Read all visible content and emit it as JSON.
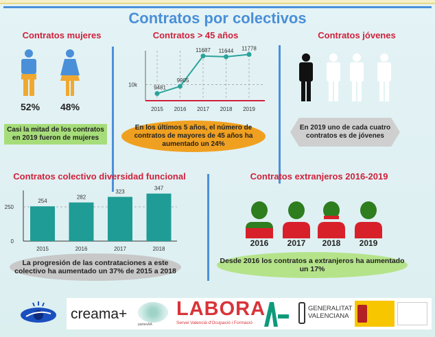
{
  "title": "Contratos por colectivos",
  "women": {
    "title": "Contratos mujeres",
    "men_pct": "52%",
    "women_pct": "48%",
    "caption": "Casi la mitad de los contratos en 2019 fueron de mujeres",
    "colors": {
      "top": "#4a90d9",
      "bottom": "#f0a830",
      "caption_bg": "#a6dd7a"
    }
  },
  "over45": {
    "title": "Contratos > 45 años",
    "caption": "En los últimos 5 años, el número de contratos de mayores de 45 años ha aumentado un 24%",
    "caption_bg": "#f0a020"
  },
  "young": {
    "title": "Contratos jóvenes",
    "caption": "En 2019 uno de cada cuatro contratos es de jóvenes",
    "highlighted": 1,
    "total": 4
  },
  "diversity": {
    "title": "Contratos colectivo diversidad funcional",
    "caption": "La progresión de las contrataciones a este colectivo ha aumentado un 37% de 2015 a 2018"
  },
  "foreign": {
    "title": "Contratos extranjeros 2016-2019",
    "years": [
      "2016",
      "2017",
      "2018",
      "2019"
    ],
    "caption": "Desde 2016 los contratos a extranjeros ha aumentado un 17%",
    "colors": {
      "head": "#2e7d1e",
      "body": "#d8202a"
    }
  },
  "chart_data": [
    {
      "type": "line",
      "title": "Contratos > 45 años",
      "categories": [
        "2015",
        "2016",
        "2017",
        "2018",
        "2019"
      ],
      "values": [
        9481,
        9905,
        11687,
        11644,
        11778
      ],
      "labels": [
        "9481",
        "9905",
        "11687",
        "11644",
        "11778"
      ],
      "yticks": [
        {
          "value": 10000,
          "label": "10k"
        }
      ],
      "ylim": [
        9060,
        12000
      ],
      "grid": true,
      "color": "#2aa39a"
    },
    {
      "type": "bar",
      "title": "Contratos colectivo diversidad funcional",
      "categories": [
        "2015",
        "2016",
        "2017",
        "2018"
      ],
      "values": [
        254,
        282,
        323,
        347
      ],
      "yticks": [
        0,
        250
      ],
      "ylim": [
        0,
        370
      ],
      "grid": true,
      "color": "#1f9c96"
    }
  ],
  "logos": {
    "creama": "creama+",
    "labora": "LABORA",
    "labora_sub": "Servei Valencià d'Ocupació i Formació",
    "partenaa": "partenAA",
    "generalitat": "GENERALITAT VALENCIANA"
  }
}
